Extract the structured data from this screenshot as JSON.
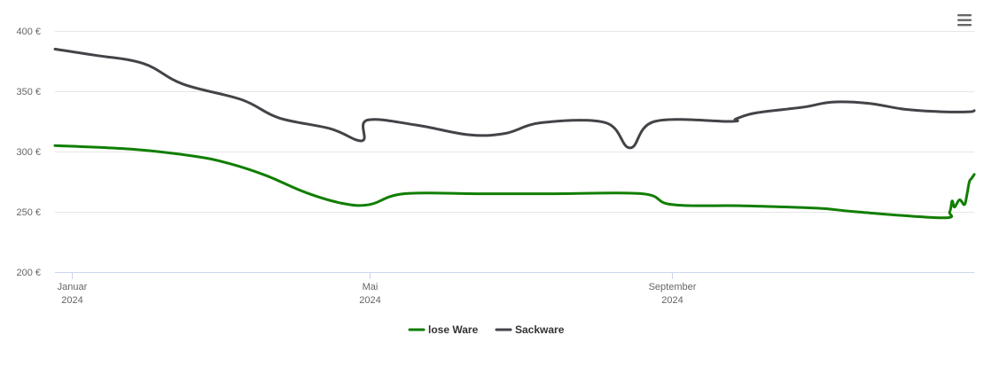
{
  "chart_data": {
    "type": "line",
    "title": "",
    "xlabel": "",
    "ylabel": "",
    "y_axis": {
      "min": 200,
      "max": 400,
      "ticks": [
        {
          "value": 200,
          "label": "200 €"
        },
        {
          "value": 250,
          "label": "250 €"
        },
        {
          "value": 300,
          "label": "300 €"
        },
        {
          "value": 350,
          "label": "350 €"
        },
        {
          "value": 400,
          "label": "400 €"
        }
      ]
    },
    "x_axis": {
      "min": "2023-12-25",
      "max": "2025-01-02",
      "ticks": [
        {
          "date": "2024-01-01",
          "month": "Januar",
          "year": "2024"
        },
        {
          "date": "2024-05-01",
          "month": "Mai",
          "year": "2024"
        },
        {
          "date": "2024-09-01",
          "month": "September",
          "year": "2024"
        }
      ]
    },
    "grid": "horizontal",
    "legend_position": "bottom-center",
    "series": [
      {
        "name": "lose Ware",
        "color": "#107e00",
        "points": [
          [
            "2023-12-25",
            305
          ],
          [
            "2024-01-25",
            302
          ],
          [
            "2024-02-20",
            296
          ],
          [
            "2024-03-05",
            290
          ],
          [
            "2024-03-20",
            280
          ],
          [
            "2024-04-05",
            266
          ],
          [
            "2024-04-20",
            257
          ],
          [
            "2024-05-01",
            256
          ],
          [
            "2024-05-15",
            265
          ],
          [
            "2024-06-15",
            265
          ],
          [
            "2024-07-15",
            265
          ],
          [
            "2024-08-20",
            265
          ],
          [
            "2024-09-01",
            256
          ],
          [
            "2024-09-30",
            255
          ],
          [
            "2024-10-30",
            253
          ],
          [
            "2024-11-15",
            250
          ],
          [
            "2024-12-20",
            245
          ],
          [
            "2024-12-23",
            250
          ],
          [
            "2024-12-24",
            259
          ],
          [
            "2024-12-25",
            254
          ],
          [
            "2024-12-27",
            260
          ],
          [
            "2024-12-29",
            256
          ],
          [
            "2024-12-30",
            264
          ],
          [
            "2024-12-31",
            275
          ],
          [
            "2025-01-01",
            278
          ],
          [
            "2025-01-02",
            281
          ]
        ]
      },
      {
        "name": "Sackware",
        "color": "#434348",
        "points": [
          [
            "2023-12-25",
            385
          ],
          [
            "2024-01-10",
            380
          ],
          [
            "2024-01-30",
            373
          ],
          [
            "2024-02-15",
            356
          ],
          [
            "2024-03-10",
            343
          ],
          [
            "2024-03-25",
            328
          ],
          [
            "2024-04-15",
            319
          ],
          [
            "2024-04-28",
            309
          ],
          [
            "2024-04-30",
            326
          ],
          [
            "2024-05-20",
            322
          ],
          [
            "2024-06-10",
            314
          ],
          [
            "2024-06-25",
            315
          ],
          [
            "2024-07-10",
            324
          ],
          [
            "2024-08-05",
            324
          ],
          [
            "2024-08-15",
            303
          ],
          [
            "2024-08-25",
            325
          ],
          [
            "2024-09-25",
            325
          ],
          [
            "2024-09-27",
            327
          ],
          [
            "2024-10-05",
            332
          ],
          [
            "2024-10-25",
            337
          ],
          [
            "2024-11-05",
            341
          ],
          [
            "2024-11-20",
            340
          ],
          [
            "2024-12-05",
            335
          ],
          [
            "2024-12-20",
            333
          ],
          [
            "2024-12-31",
            333
          ],
          [
            "2025-01-02",
            334
          ]
        ]
      }
    ]
  },
  "menu": {
    "icon": "hamburger-menu-icon"
  }
}
